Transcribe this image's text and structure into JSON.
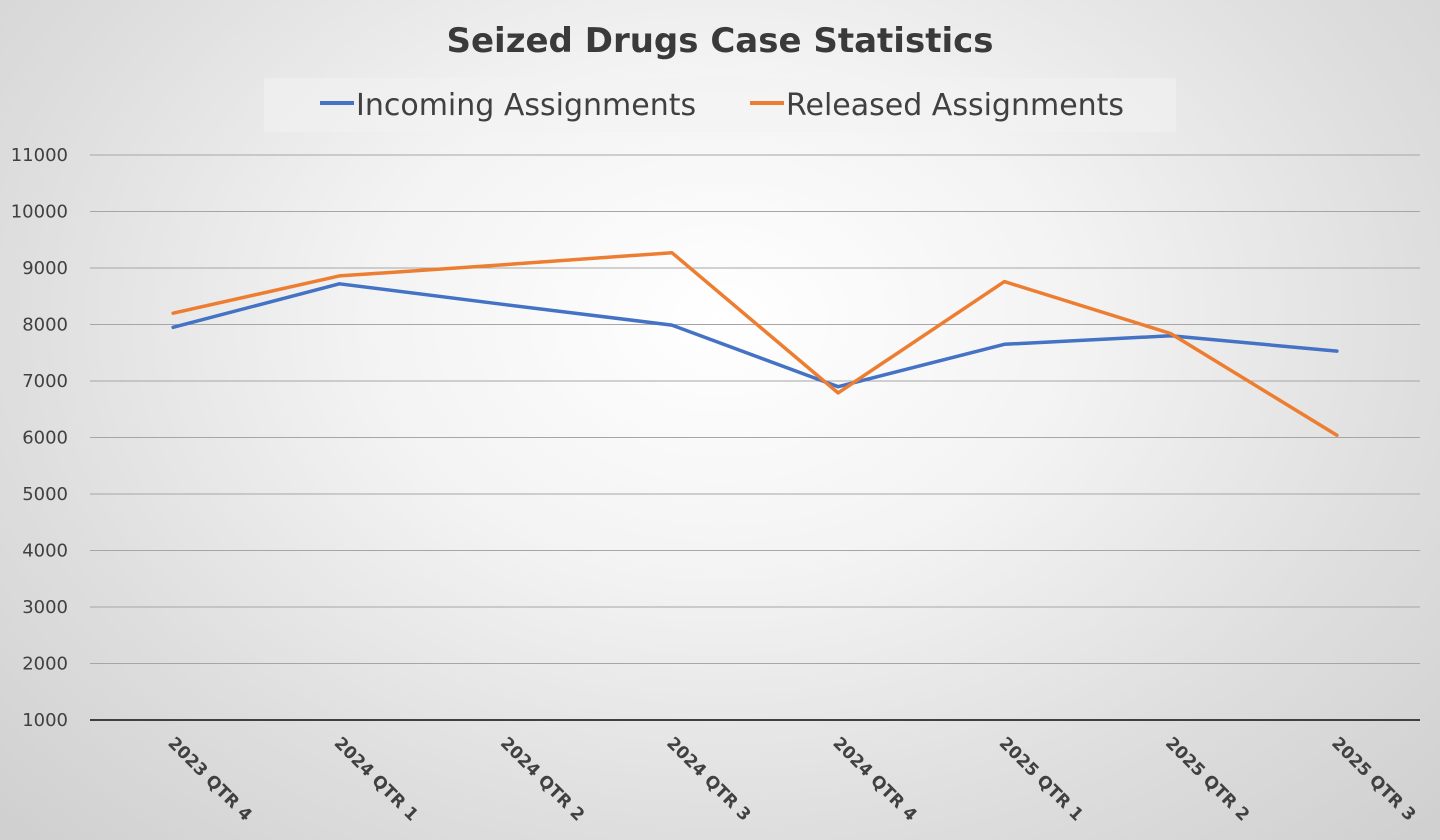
{
  "chart_data": {
    "type": "line",
    "title": "Seized Drugs Case Statistics",
    "xlabel": "",
    "ylabel": "",
    "categories": [
      "2023 QTR 4",
      "2024 QTR 1",
      "2024 QTR 2",
      "2024 QTR 3",
      "2024 QTR 4",
      "2025 QTR 1",
      "2025 QTR 2",
      "2025 QTR 3"
    ],
    "ylim": [
      1000,
      11000
    ],
    "yticks": [
      1000,
      2000,
      3000,
      4000,
      5000,
      6000,
      7000,
      8000,
      9000,
      10000,
      11000
    ],
    "grid": true,
    "legend_position": "top",
    "series": [
      {
        "name": "Incoming Assignments",
        "color": "#4472c4",
        "values": [
          7950,
          8720,
          8350,
          7990,
          6900,
          7650,
          7800,
          7530
        ]
      },
      {
        "name": "Released Assignments",
        "color": "#ed7d31",
        "values": [
          8200,
          8860,
          9060,
          9270,
          6790,
          8760,
          7840,
          6040
        ]
      }
    ]
  }
}
